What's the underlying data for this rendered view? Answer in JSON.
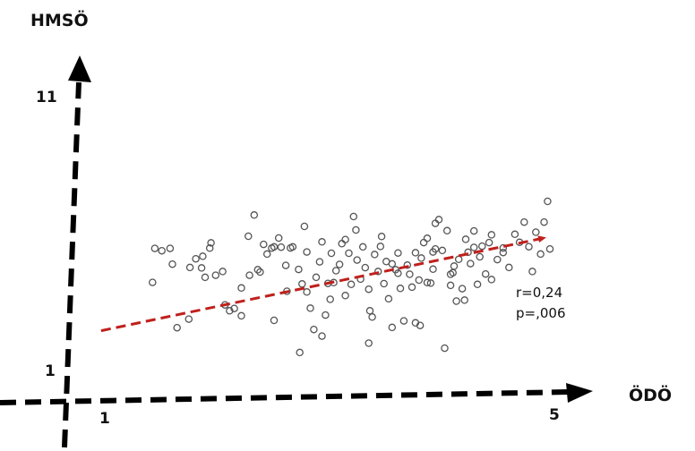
{
  "chart_data": {
    "type": "scatter",
    "title": "",
    "xlabel": "ÖDÖ",
    "ylabel": "HMSÖ",
    "x_tick_labels": [
      "1",
      "5"
    ],
    "y_tick_labels": [
      "1",
      "11"
    ],
    "xlim": [
      1,
      5
    ],
    "ylim": [
      1,
      11
    ],
    "grid": false,
    "legend": "none",
    "point_color": "#555555",
    "trend_color": "#c0201c",
    "axis_color": "#000000",
    "annotations": {
      "r": "r=0,24",
      "p": "p=,006"
    },
    "trend_line": {
      "x": [
        1.16,
        5.0
      ],
      "y": [
        2.71,
        6.43
      ]
    },
    "points": [
      [
        1.6,
        4.62
      ],
      [
        1.62,
        5.96
      ],
      [
        1.68,
        5.87
      ],
      [
        1.75,
        5.96
      ],
      [
        1.77,
        5.34
      ],
      [
        1.81,
        2.83
      ],
      [
        1.92,
        5.21
      ],
      [
        1.91,
        3.17
      ],
      [
        1.97,
        5.55
      ],
      [
        2.03,
        5.65
      ],
      [
        2.02,
        5.19
      ],
      [
        2.05,
        4.82
      ],
      [
        2.09,
        5.97
      ],
      [
        2.1,
        6.18
      ],
      [
        2.14,
        4.9
      ],
      [
        2.2,
        5.05
      ],
      [
        2.26,
        3.5
      ],
      [
        2.3,
        3.59
      ],
      [
        2.36,
        4.4
      ],
      [
        2.42,
        6.44
      ],
      [
        2.47,
        7.28
      ],
      [
        2.5,
        5.12
      ],
      [
        2.55,
        6.12
      ],
      [
        2.58,
        5.74
      ],
      [
        2.62,
        5.97
      ],
      [
        2.64,
        6.02
      ],
      [
        2.68,
        6.37
      ],
      [
        2.7,
        6.01
      ],
      [
        2.74,
        5.29
      ],
      [
        2.78,
        5.98
      ],
      [
        2.8,
        6.02
      ],
      [
        2.85,
        5.13
      ],
      [
        2.88,
        4.56
      ],
      [
        2.9,
        6.83
      ],
      [
        2.92,
        4.24
      ],
      [
        2.95,
        3.6
      ],
      [
        2.98,
        2.76
      ],
      [
        3.0,
        4.82
      ],
      [
        3.03,
        5.43
      ],
      [
        3.05,
        6.22
      ],
      [
        3.08,
        3.33
      ],
      [
        3.1,
        4.58
      ],
      [
        3.13,
        5.77
      ],
      [
        3.15,
        4.61
      ],
      [
        3.17,
        5.08
      ],
      [
        3.2,
        5.33
      ],
      [
        3.22,
        6.15
      ],
      [
        3.25,
        4.1
      ],
      [
        3.28,
        5.77
      ],
      [
        3.3,
        4.54
      ],
      [
        3.32,
        7.22
      ],
      [
        3.35,
        5.5
      ],
      [
        3.38,
        4.75
      ],
      [
        3.4,
        6.02
      ],
      [
        3.42,
        5.2
      ],
      [
        3.45,
        4.35
      ],
      [
        3.48,
        3.25
      ],
      [
        3.5,
        5.72
      ],
      [
        3.53,
        5.05
      ],
      [
        3.55,
        6.04
      ],
      [
        3.58,
        4.57
      ],
      [
        3.6,
        5.44
      ],
      [
        3.62,
        3.97
      ],
      [
        3.65,
        2.84
      ],
      [
        3.68,
        5.12
      ],
      [
        3.7,
        5.78
      ],
      [
        3.72,
        4.38
      ],
      [
        3.75,
        3.1
      ],
      [
        3.78,
        5.3
      ],
      [
        3.8,
        4.94
      ],
      [
        3.82,
        4.43
      ],
      [
        3.85,
        5.79
      ],
      [
        3.88,
        4.71
      ],
      [
        3.9,
        5.58
      ],
      [
        3.92,
        6.19
      ],
      [
        3.95,
        6.36
      ],
      [
        3.98,
        4.59
      ],
      [
        4.0,
        5.14
      ],
      [
        4.02,
        6.95
      ],
      [
        4.05,
        7.1
      ],
      [
        4.08,
        5.88
      ],
      [
        4.1,
        2.02
      ],
      [
        4.12,
        6.66
      ],
      [
        4.15,
        4.94
      ],
      [
        4.18,
        5.26
      ],
      [
        4.2,
        3.88
      ],
      [
        4.22,
        5.53
      ],
      [
        4.25,
        4.37
      ],
      [
        4.28,
        6.32
      ],
      [
        4.3,
        5.81
      ],
      [
        4.32,
        5.36
      ],
      [
        4.35,
        6.0
      ],
      [
        4.38,
        4.54
      ],
      [
        4.4,
        5.63
      ],
      [
        4.42,
        6.05
      ],
      [
        4.45,
        4.95
      ],
      [
        4.48,
        6.19
      ],
      [
        4.5,
        6.5
      ],
      [
        4.55,
        5.52
      ],
      [
        4.6,
        5.98
      ],
      [
        4.65,
        5.21
      ],
      [
        4.7,
        6.52
      ],
      [
        4.74,
        6.2
      ],
      [
        4.78,
        7.0
      ],
      [
        4.82,
        6.03
      ],
      [
        4.85,
        5.05
      ],
      [
        4.88,
        6.6
      ],
      [
        4.92,
        5.74
      ],
      [
        4.95,
        7.0
      ],
      [
        5.0,
        5.94
      ],
      [
        2.86,
        1.85
      ],
      [
        3.45,
        2.22
      ],
      [
        2.36,
        3.3
      ],
      [
        3.25,
        6.31
      ],
      [
        4.5,
        4.73
      ],
      [
        2.52,
        5.03
      ],
      [
        4.6,
        5.8
      ],
      [
        3.7,
        4.98
      ],
      [
        3.95,
        4.61
      ],
      [
        3.12,
        3.95
      ],
      [
        3.46,
        3.5
      ],
      [
        2.92,
        5.82
      ],
      [
        4.35,
        6.65
      ],
      [
        4.02,
        5.94
      ],
      [
        3.05,
        2.5
      ],
      [
        2.64,
        3.12
      ],
      [
        4.17,
        5.0
      ],
      [
        3.56,
        6.43
      ],
      [
        4.98,
        7.82
      ],
      [
        3.34,
        6.69
      ],
      [
        4.15,
        4.5
      ],
      [
        3.65,
        5.35
      ],
      [
        2.22,
        3.73
      ],
      [
        2.43,
        4.9
      ],
      [
        3.85,
        3.02
      ],
      [
        4.27,
        3.92
      ],
      [
        2.75,
        4.27
      ],
      [
        3.89,
        2.92
      ],
      [
        4.0,
        5.82
      ]
    ]
  }
}
